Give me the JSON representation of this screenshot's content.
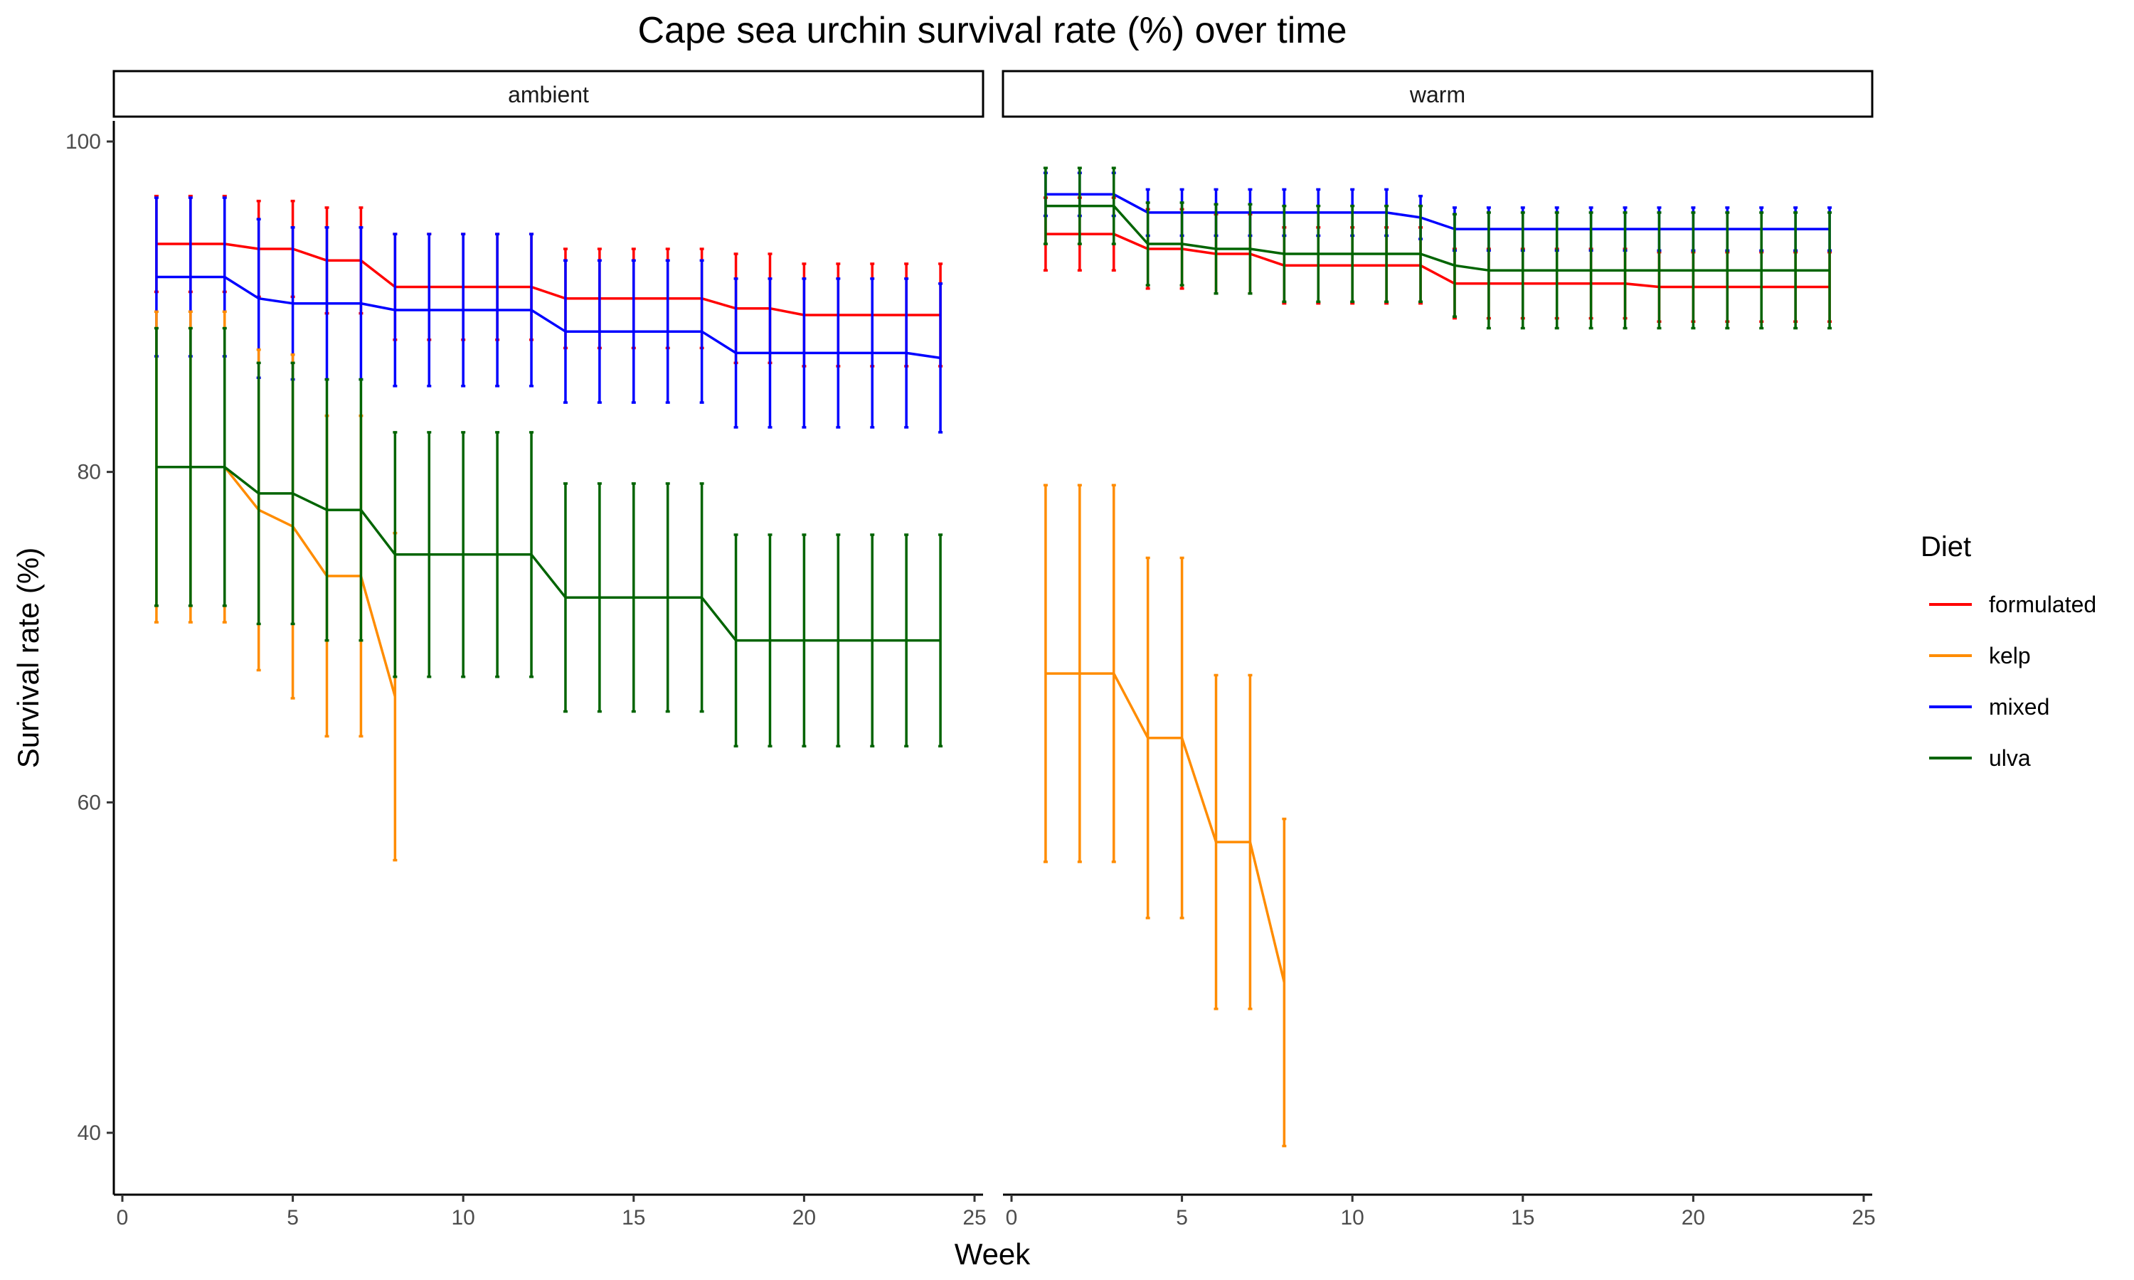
{
  "chart_data": {
    "type": "line",
    "title": "Cape sea urchin survival rate (%) over time",
    "xlabel": "Week",
    "ylabel": "Survival rate (%)",
    "xlim": [
      0,
      25
    ],
    "ylim": [
      40,
      100
    ],
    "x_ticks": [
      "0",
      "5",
      "10",
      "15",
      "20",
      "25"
    ],
    "y_ticks": [
      "40",
      "60",
      "80",
      "100"
    ],
    "grid": false,
    "legend": {
      "title": "Diet",
      "position": "right",
      "entries": [
        "formulated",
        "kelp",
        "mixed",
        "ulva"
      ]
    },
    "colors": {
      "formulated": "#FF0000",
      "kelp": "#FF8C00",
      "mixed": "#0000FF",
      "ulva": "#006400"
    },
    "panels": [
      {
        "label": "ambient",
        "series": [
          {
            "name": "formulated",
            "x": [
              1,
              2,
              3,
              4,
              5,
              6,
              7,
              8,
              9,
              10,
              11,
              12,
              13,
              14,
              15,
              16,
              17,
              18,
              19,
              20,
              21,
              22,
              23,
              24
            ],
            "y": [
              93.8,
              93.8,
              93.8,
              93.5,
              93.5,
              92.8,
              92.8,
              91.2,
              91.2,
              91.2,
              91.2,
              91.2,
              90.5,
              90.5,
              90.5,
              90.5,
              90.5,
              89.9,
              89.9,
              89.5,
              89.5,
              89.5,
              89.5,
              89.5
            ],
            "err": [
              2.9,
              2.9,
              2.9,
              2.9,
              2.9,
              3.2,
              3.2,
              3.2,
              3.2,
              3.2,
              3.2,
              3.2,
              3.0,
              3.0,
              3.0,
              3.0,
              3.0,
              3.3,
              3.3,
              3.1,
              3.1,
              3.1,
              3.1,
              3.1
            ]
          },
          {
            "name": "mixed",
            "x": [
              1,
              2,
              3,
              4,
              5,
              6,
              7,
              8,
              9,
              10,
              11,
              12,
              13,
              14,
              15,
              16,
              17,
              18,
              19,
              20,
              21,
              22,
              23,
              24
            ],
            "y": [
              91.8,
              91.8,
              91.8,
              90.5,
              90.2,
              90.2,
              90.2,
              89.8,
              89.8,
              89.8,
              89.8,
              89.8,
              88.5,
              88.5,
              88.5,
              88.5,
              88.5,
              87.2,
              87.2,
              87.2,
              87.2,
              87.2,
              87.2,
              86.9
            ],
            "err": [
              4.8,
              4.8,
              4.8,
              4.8,
              4.6,
              4.6,
              4.6,
              4.6,
              4.6,
              4.6,
              4.6,
              4.6,
              4.3,
              4.3,
              4.3,
              4.3,
              4.3,
              4.5,
              4.5,
              4.5,
              4.5,
              4.5,
              4.5,
              4.5
            ]
          },
          {
            "name": "kelp",
            "x": [
              1,
              2,
              3,
              4,
              5,
              6,
              7,
              8
            ],
            "y": [
              80.3,
              80.3,
              80.3,
              77.7,
              76.7,
              73.7,
              73.7,
              66.4
            ],
            "err": [
              9.4,
              9.4,
              9.4,
              9.7,
              10.4,
              9.7,
              9.7,
              9.9
            ]
          },
          {
            "name": "ulva",
            "x": [
              1,
              2,
              3,
              4,
              5,
              6,
              7,
              8,
              9,
              10,
              11,
              12,
              13,
              14,
              15,
              16,
              17,
              18,
              19,
              20,
              21,
              22,
              23,
              24
            ],
            "y": [
              80.3,
              80.3,
              80.3,
              78.7,
              78.7,
              77.7,
              77.7,
              75.0,
              75.0,
              75.0,
              75.0,
              75.0,
              72.4,
              72.4,
              72.4,
              72.4,
              72.4,
              69.8,
              69.8,
              69.8,
              69.8,
              69.8,
              69.8,
              69.8
            ],
            "err": [
              8.4,
              8.4,
              8.4,
              7.9,
              7.9,
              7.9,
              7.9,
              7.4,
              7.4,
              7.4,
              7.4,
              7.4,
              6.9,
              6.9,
              6.9,
              6.9,
              6.9,
              6.4,
              6.4,
              6.4,
              6.4,
              6.4,
              6.4,
              6.4
            ]
          }
        ]
      },
      {
        "label": "warm",
        "series": [
          {
            "name": "formulated",
            "x": [
              1,
              2,
              3,
              4,
              5,
              6,
              7,
              8,
              9,
              10,
              11,
              12,
              13,
              14,
              15,
              16,
              17,
              18,
              19,
              20,
              21,
              22,
              23,
              24
            ],
            "y": [
              94.4,
              94.4,
              94.4,
              93.5,
              93.5,
              93.2,
              93.2,
              92.5,
              92.5,
              92.5,
              92.5,
              92.5,
              91.4,
              91.4,
              91.4,
              91.4,
              91.4,
              91.4,
              91.2,
              91.2,
              91.2,
              91.2,
              91.2,
              91.2
            ],
            "err": [
              2.2,
              2.2,
              2.2,
              2.4,
              2.4,
              2.4,
              2.4,
              2.3,
              2.3,
              2.3,
              2.3,
              2.3,
              2.1,
              2.1,
              2.1,
              2.1,
              2.1,
              2.1,
              2.1,
              2.1,
              2.1,
              2.1,
              2.1,
              2.1
            ]
          },
          {
            "name": "mixed",
            "x": [
              1,
              2,
              3,
              4,
              5,
              6,
              7,
              8,
              9,
              10,
              11,
              12,
              13,
              14,
              15,
              16,
              17,
              18,
              19,
              20,
              21,
              22,
              23,
              24
            ],
            "y": [
              96.8,
              96.8,
              96.8,
              95.7,
              95.7,
              95.7,
              95.7,
              95.7,
              95.7,
              95.7,
              95.7,
              95.4,
              94.7,
              94.7,
              94.7,
              94.7,
              94.7,
              94.7,
              94.7,
              94.7,
              94.7,
              94.7,
              94.7,
              94.7
            ],
            "err": [
              1.3,
              1.3,
              1.3,
              1.4,
              1.4,
              1.4,
              1.4,
              1.4,
              1.4,
              1.4,
              1.4,
              1.3,
              1.3,
              1.3,
              1.3,
              1.3,
              1.3,
              1.3,
              1.3,
              1.3,
              1.3,
              1.3,
              1.3,
              1.3
            ]
          },
          {
            "name": "ulva",
            "x": [
              1,
              2,
              3,
              4,
              5,
              6,
              7,
              8,
              9,
              10,
              11,
              12,
              13,
              14,
              15,
              16,
              17,
              18,
              19,
              20,
              21,
              22,
              23,
              24
            ],
            "y": [
              96.1,
              96.1,
              96.1,
              93.8,
              93.8,
              93.5,
              93.5,
              93.2,
              93.2,
              93.2,
              93.2,
              93.2,
              92.5,
              92.2,
              92.2,
              92.2,
              92.2,
              92.2,
              92.2,
              92.2,
              92.2,
              92.2,
              92.2,
              92.2
            ],
            "err": [
              2.3,
              2.3,
              2.3,
              2.5,
              2.5,
              2.7,
              2.7,
              2.9,
              2.9,
              2.9,
              2.9,
              2.9,
              3.1,
              3.5,
              3.5,
              3.5,
              3.5,
              3.5,
              3.5,
              3.5,
              3.5,
              3.5,
              3.5,
              3.5
            ]
          },
          {
            "name": "kelp",
            "x": [
              1,
              2,
              3,
              4,
              5,
              6,
              7,
              8
            ],
            "y": [
              67.8,
              67.8,
              67.8,
              63.9,
              63.9,
              57.6,
              57.6,
              49.1
            ],
            "err": [
              11.4,
              11.4,
              11.4,
              10.9,
              10.9,
              10.1,
              10.1,
              9.9
            ]
          }
        ]
      }
    ]
  }
}
